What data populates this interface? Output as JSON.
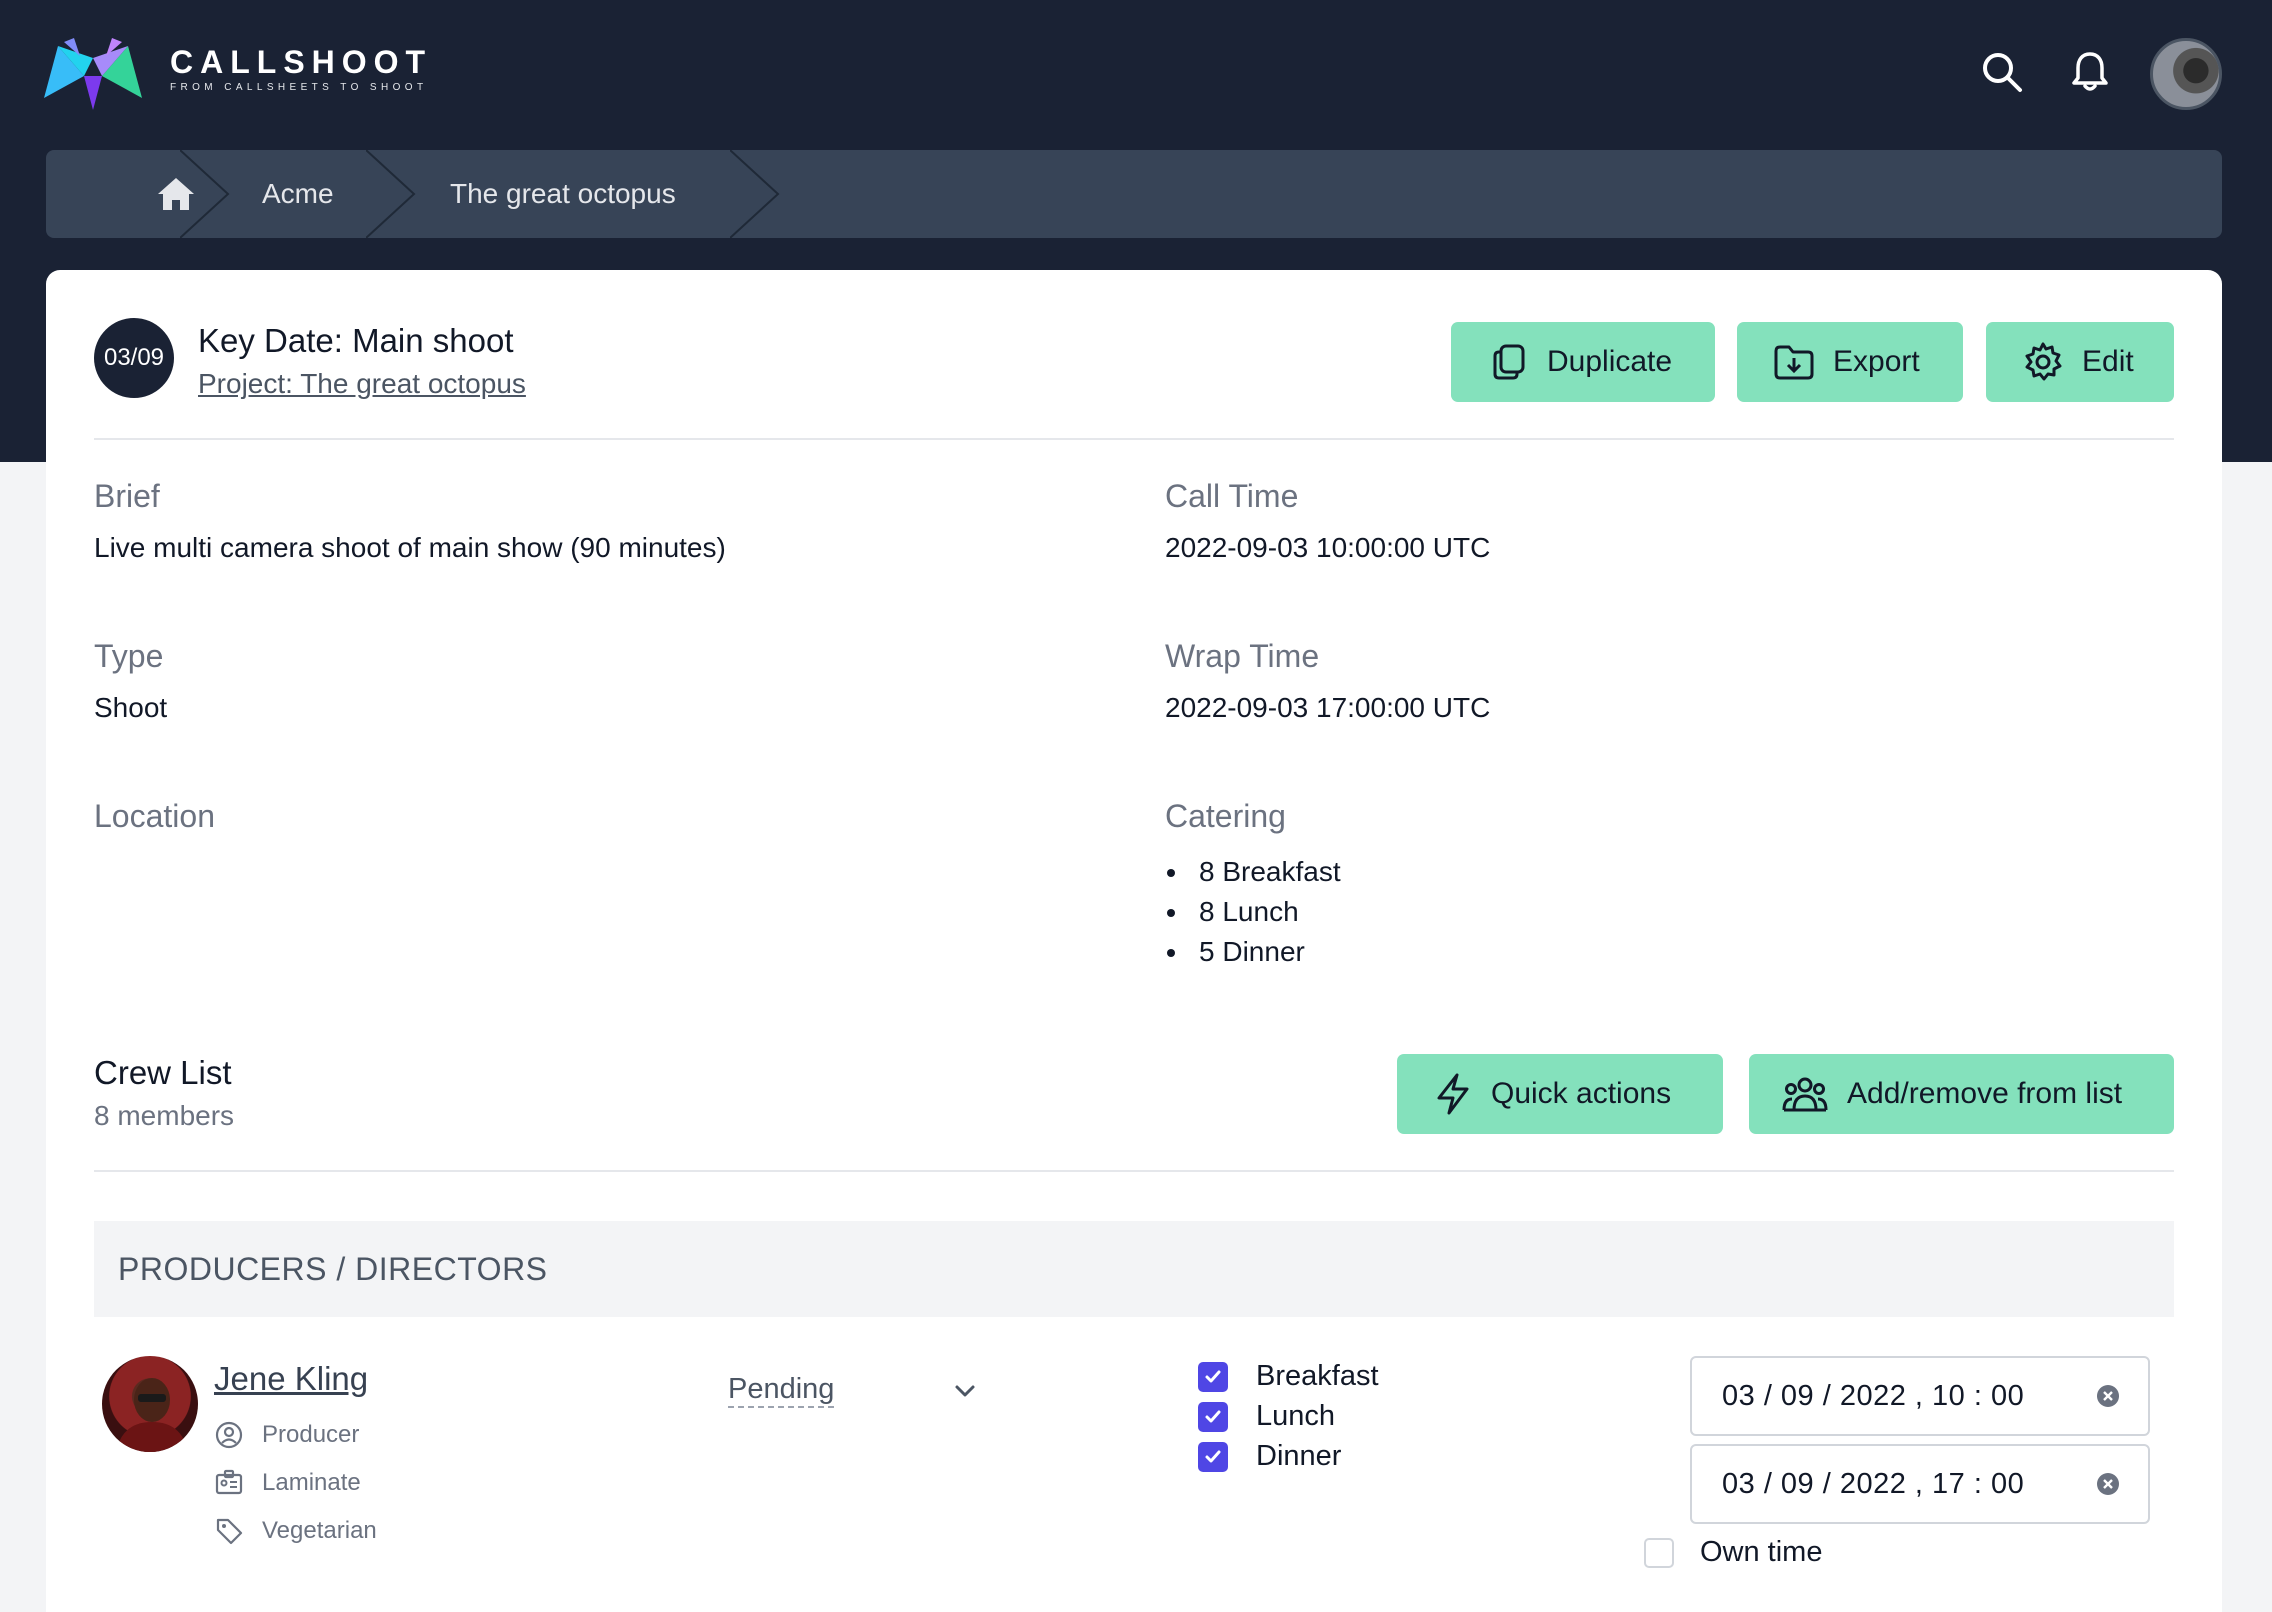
{
  "app": {
    "brand_name": "CALLSHOOT",
    "brand_tagline": "FROM CALLSHEETS TO SHOOT"
  },
  "header": {
    "icons": [
      "search-icon",
      "bell-icon"
    ]
  },
  "breadcrumb": {
    "items": [
      "Acme",
      "The great octopus"
    ]
  },
  "keydate": {
    "badge": "03/09",
    "title": "Key Date: Main shoot",
    "project_link": "Project: The great octopus"
  },
  "actions": {
    "duplicate": "Duplicate",
    "export": "Export",
    "edit": "Edit"
  },
  "details": {
    "brief_label": "Brief",
    "brief_value": "Live multi camera shoot of main show (90 minutes)",
    "type_label": "Type",
    "type_value": "Shoot",
    "location_label": "Location",
    "call_label": "Call Time",
    "call_value": "2022-09-03 10:00:00 UTC",
    "wrap_label": "Wrap Time",
    "wrap_value": "2022-09-03 17:00:00 UTC",
    "catering_label": "Catering",
    "catering": [
      "8 Breakfast",
      "8 Lunch",
      "5 Dinner"
    ]
  },
  "crew": {
    "title": "Crew List",
    "count": "8 members",
    "quick_actions": "Quick actions",
    "add_remove": "Add/remove from list",
    "section": "PRODUCERS / DIRECTORS",
    "member": {
      "name": "Jene Kling",
      "role": "Producer",
      "laminate": "Laminate",
      "diet": "Vegetarian",
      "status": "Pending",
      "meals": [
        "Breakfast",
        "Lunch",
        "Dinner"
      ],
      "meals_checked": [
        true,
        true,
        true
      ],
      "call_time": "03 / 09 / 2022 ,  10 : 00",
      "wrap_time": "03 / 09 / 2022 ,  17 : 00",
      "own_time_label": "Own time",
      "own_time_checked": false
    }
  },
  "colors": {
    "navy": "#1a2234",
    "breadcrumb": "#374457",
    "accent_green": "#84e1bc",
    "checkbox": "#4f46e5"
  }
}
